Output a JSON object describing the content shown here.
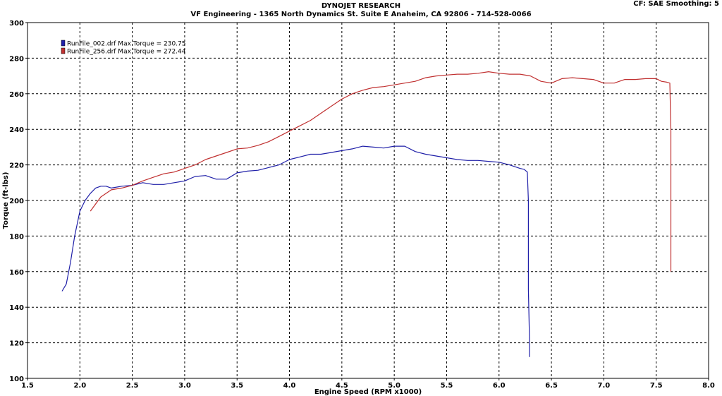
{
  "header": {
    "title": "DYNOJET RESEARCH",
    "subtitle": "VF Engineering - 1365 North Dynamics St. Suite E Anaheim, CA 92806 - 714-528-0066",
    "settings": "CF: SAE   Smoothing: 5"
  },
  "chart_data": {
    "type": "line",
    "xlabel": "Engine Speed (RPM x1000)",
    "ylabel": "Torque (ft-lbs)",
    "xlim": [
      1.5,
      8.0
    ],
    "ylim": [
      100,
      300
    ],
    "xticks": [
      "1.5",
      "2.0",
      "2.5",
      "3.0",
      "3.5",
      "4.0",
      "4.5",
      "5.0",
      "5.5",
      "6.0",
      "6.5",
      "7.0",
      "7.5",
      "8.0"
    ],
    "yticks": [
      "100",
      "120",
      "140",
      "160",
      "180",
      "200",
      "220",
      "240",
      "260",
      "280",
      "300"
    ],
    "grid": true,
    "legend_position": "top-left",
    "series": [
      {
        "name": "RunFile_002.drf Max Torque = 230.75",
        "color": "#1f1fa8",
        "x": [
          1.83,
          1.87,
          1.91,
          1.95,
          2.0,
          2.05,
          2.1,
          2.15,
          2.2,
          2.25,
          2.3,
          2.4,
          2.5,
          2.6,
          2.7,
          2.8,
          2.9,
          3.0,
          3.1,
          3.2,
          3.3,
          3.4,
          3.5,
          3.6,
          3.7,
          3.8,
          3.9,
          4.0,
          4.1,
          4.2,
          4.3,
          4.4,
          4.5,
          4.6,
          4.7,
          4.8,
          4.9,
          5.0,
          5.1,
          5.2,
          5.3,
          5.4,
          5.5,
          5.6,
          5.7,
          5.8,
          5.9,
          6.0,
          6.1,
          6.2,
          6.24,
          6.27,
          6.28,
          6.28,
          6.29,
          6.29
        ],
        "y": [
          149,
          153,
          165,
          180,
          194,
          200,
          204,
          207,
          208,
          208,
          207,
          208,
          208.5,
          210,
          209,
          209,
          210,
          211,
          213.5,
          214,
          212,
          212,
          215.5,
          216.5,
          217,
          218.5,
          220,
          223,
          224.5,
          226,
          226,
          227,
          228,
          229,
          230.5,
          230,
          229.5,
          230.5,
          230.5,
          227.5,
          226,
          225,
          224,
          223,
          222.5,
          222.5,
          222,
          221.5,
          220,
          218,
          217.5,
          216,
          200,
          150,
          123,
          112
        ]
      },
      {
        "name": "RunFile_256.drf Max Torque = 272.44",
        "color": "#c03030",
        "x": [
          2.1,
          2.15,
          2.2,
          2.3,
          2.4,
          2.5,
          2.6,
          2.7,
          2.8,
          2.9,
          3.0,
          3.1,
          3.2,
          3.3,
          3.4,
          3.5,
          3.6,
          3.7,
          3.8,
          3.9,
          4.0,
          4.1,
          4.2,
          4.3,
          4.4,
          4.5,
          4.6,
          4.7,
          4.8,
          4.9,
          5.0,
          5.1,
          5.2,
          5.3,
          5.4,
          5.5,
          5.6,
          5.7,
          5.8,
          5.9,
          6.0,
          6.1,
          6.2,
          6.3,
          6.4,
          6.5,
          6.6,
          6.7,
          6.8,
          6.9,
          7.0,
          7.1,
          7.2,
          7.3,
          7.4,
          7.5,
          7.55,
          7.6,
          7.63,
          7.64,
          7.64,
          7.64
        ],
        "y": [
          194,
          198,
          202,
          206,
          207,
          208.5,
          211,
          213,
          215,
          216,
          218,
          220,
          223,
          225,
          227,
          229,
          229.5,
          231,
          233,
          236,
          239,
          242,
          245,
          249,
          253,
          257,
          260,
          262,
          263.5,
          264,
          265,
          266,
          267,
          269,
          270,
          270.5,
          271,
          271,
          271.5,
          272.4,
          271.5,
          271,
          271,
          270,
          267,
          266,
          268.5,
          269,
          268.5,
          268,
          266,
          266,
          268,
          268,
          268.5,
          268.5,
          267,
          266.5,
          266,
          240,
          180,
          160
        ]
      }
    ]
  }
}
